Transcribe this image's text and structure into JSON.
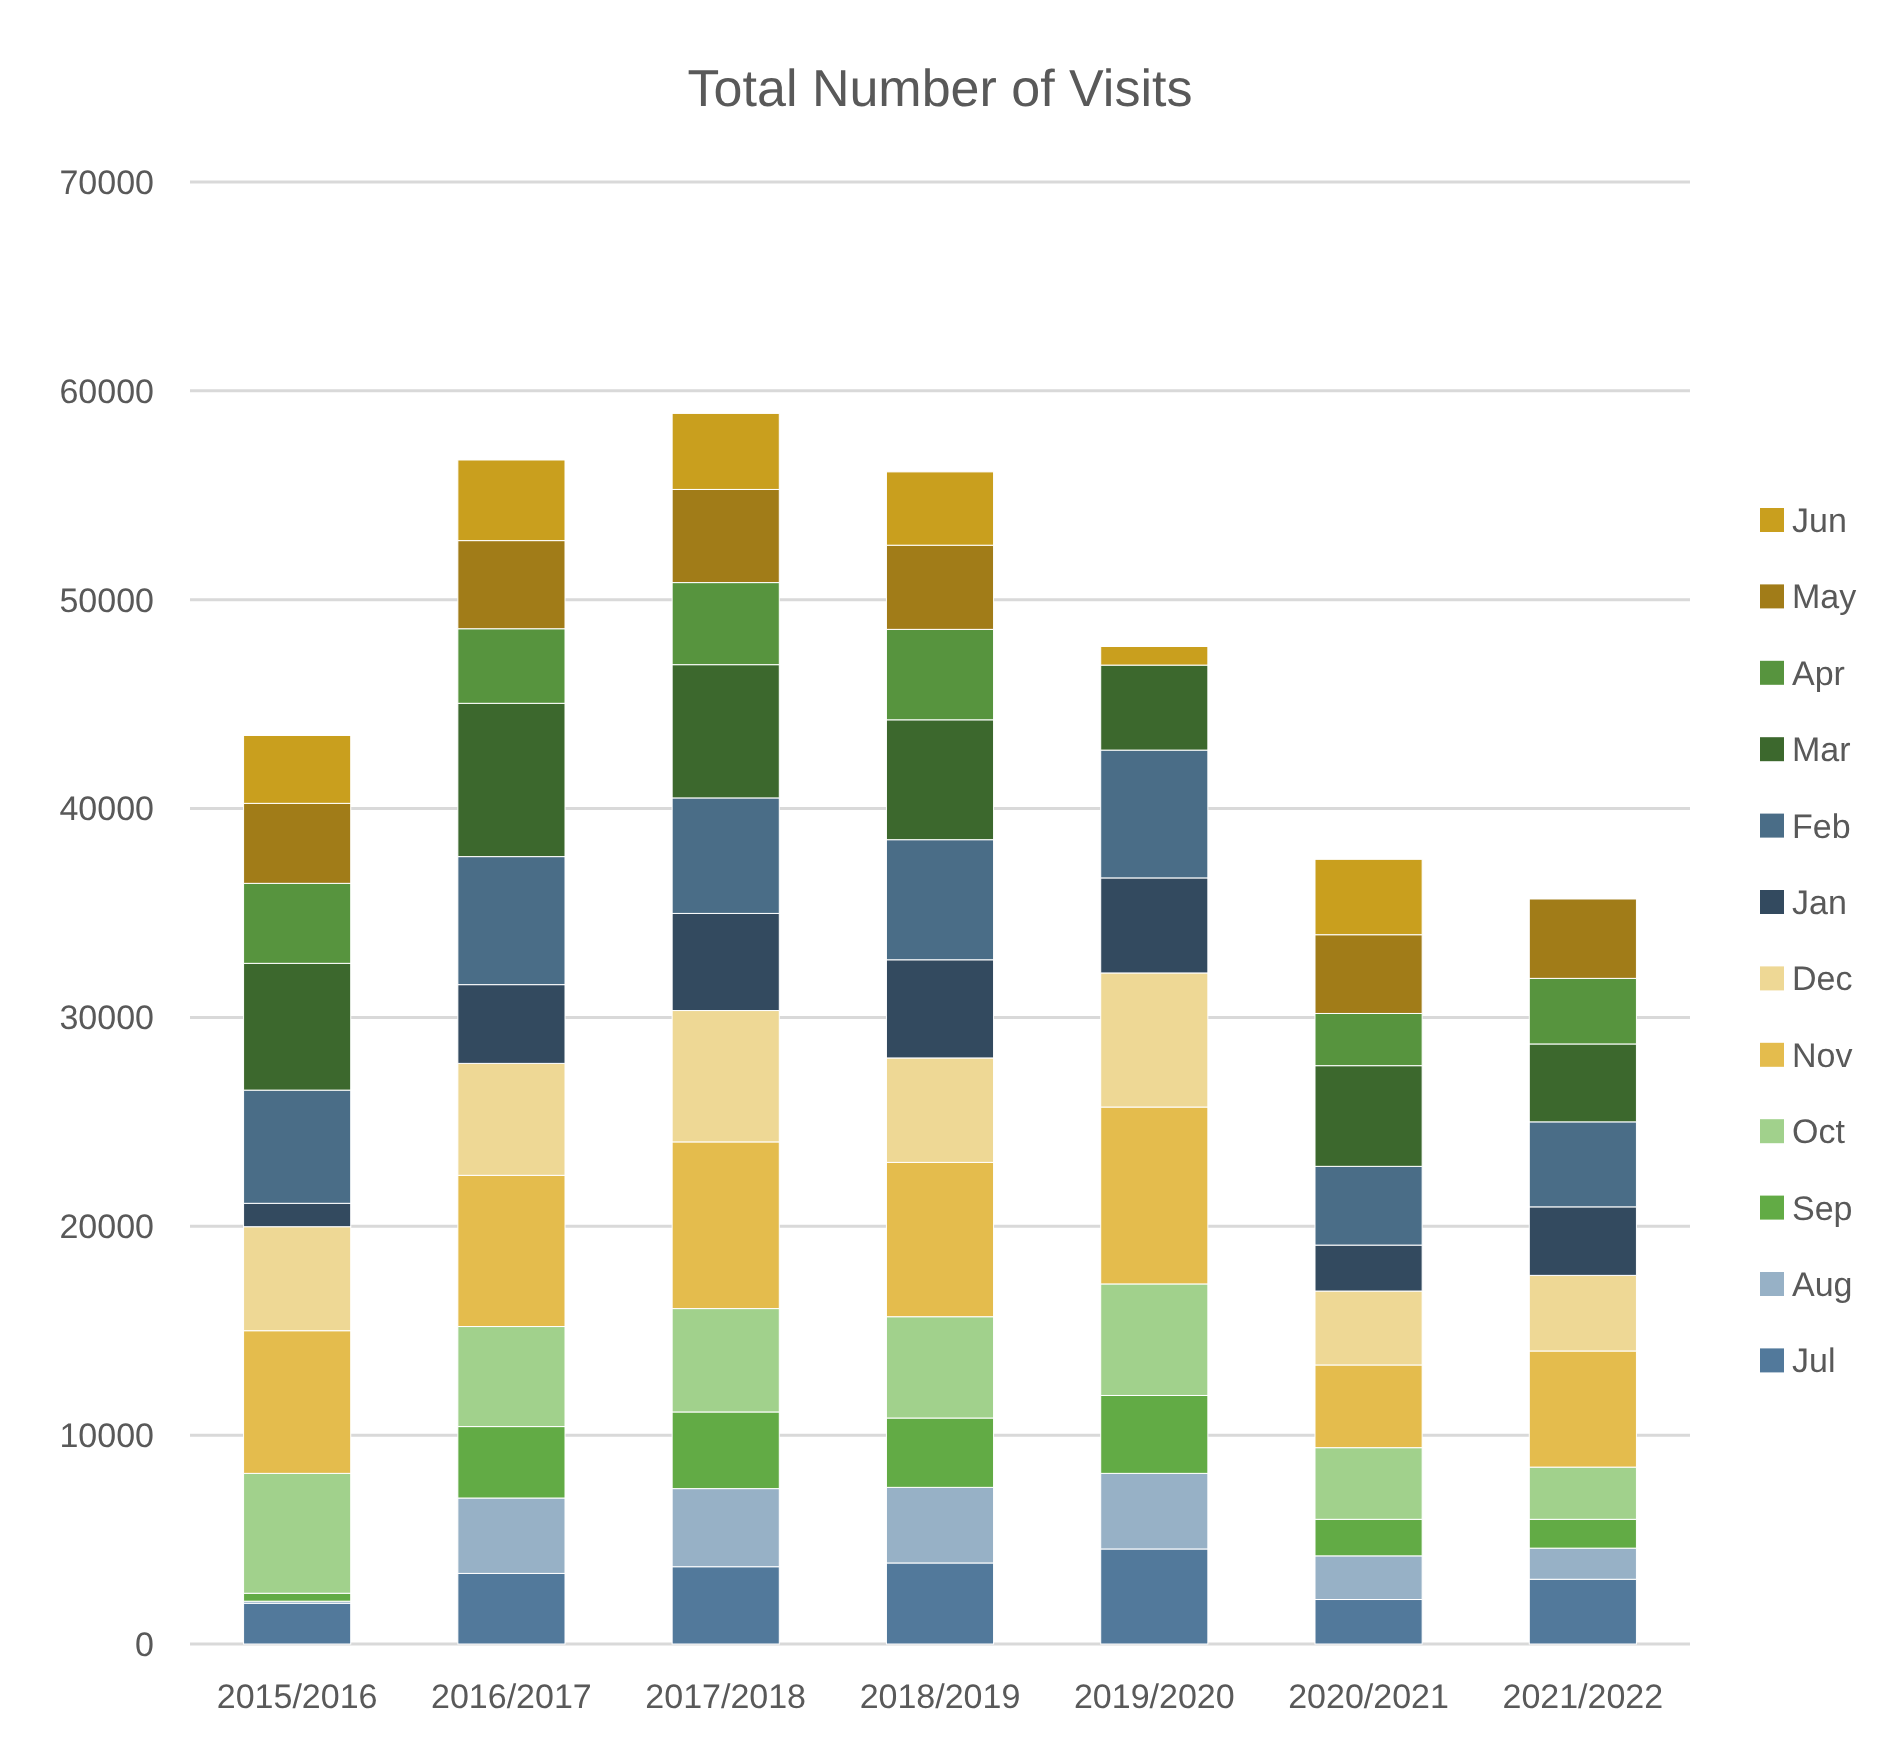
{
  "chart_data": {
    "type": "bar",
    "title": "Total Number of Visits",
    "stacked": true,
    "categories": [
      "2015/2016",
      "2016/2017",
      "2017/2018",
      "2018/2019",
      "2019/2020",
      "2020/2021",
      "2021/2022"
    ],
    "ylim": [
      0,
      70000
    ],
    "yticks": [
      0,
      10000,
      20000,
      30000,
      40000,
      50000,
      60000,
      70000
    ],
    "grid": "y",
    "legend": "right",
    "series": [
      {
        "name": "Jul",
        "color": "#52799b",
        "values": [
          1950,
          3380,
          3700,
          3880,
          4550,
          2130,
          3100
        ]
      },
      {
        "name": "Aug",
        "color": "#97b1c6",
        "values": [
          100,
          3610,
          3740,
          3620,
          3620,
          2090,
          1490
        ]
      },
      {
        "name": "Sep",
        "color": "#62ab45",
        "values": [
          380,
          3420,
          3670,
          3320,
          3730,
          1750,
          1380
        ]
      },
      {
        "name": "Oct",
        "color": "#a1d18c",
        "values": [
          5740,
          4790,
          4950,
          4850,
          5340,
          3430,
          2500
        ]
      },
      {
        "name": "Nov",
        "color": "#e4bc4d",
        "values": [
          6830,
          7240,
          7980,
          7390,
          8470,
          3960,
          5560
        ]
      },
      {
        "name": "Dec",
        "color": "#eed895",
        "values": [
          4980,
          5360,
          6290,
          5000,
          6420,
          3540,
          3620
        ]
      },
      {
        "name": "Jan",
        "color": "#334a5f",
        "values": [
          1120,
          3770,
          4650,
          4700,
          4550,
          2200,
          3280
        ]
      },
      {
        "name": "Feb",
        "color": "#4a6d87",
        "values": [
          5420,
          6130,
          5530,
          5750,
          6120,
          3770,
          4070
        ]
      },
      {
        "name": "Mar",
        "color": "#3c682d",
        "values": [
          6070,
          7340,
          6380,
          5740,
          4070,
          4820,
          3730
        ]
      },
      {
        "name": "Apr",
        "color": "#57943e",
        "values": [
          3830,
          3570,
          3930,
          4330,
          0,
          2500,
          3140
        ]
      },
      {
        "name": "May",
        "color": "#a17c18",
        "values": [
          3830,
          4220,
          4460,
          4030,
          0,
          3770,
          3800
        ]
      },
      {
        "name": "Jun",
        "color": "#c99f1e",
        "values": [
          3250,
          3860,
          3640,
          3510,
          890,
          3610,
          0
        ]
      }
    ]
  }
}
